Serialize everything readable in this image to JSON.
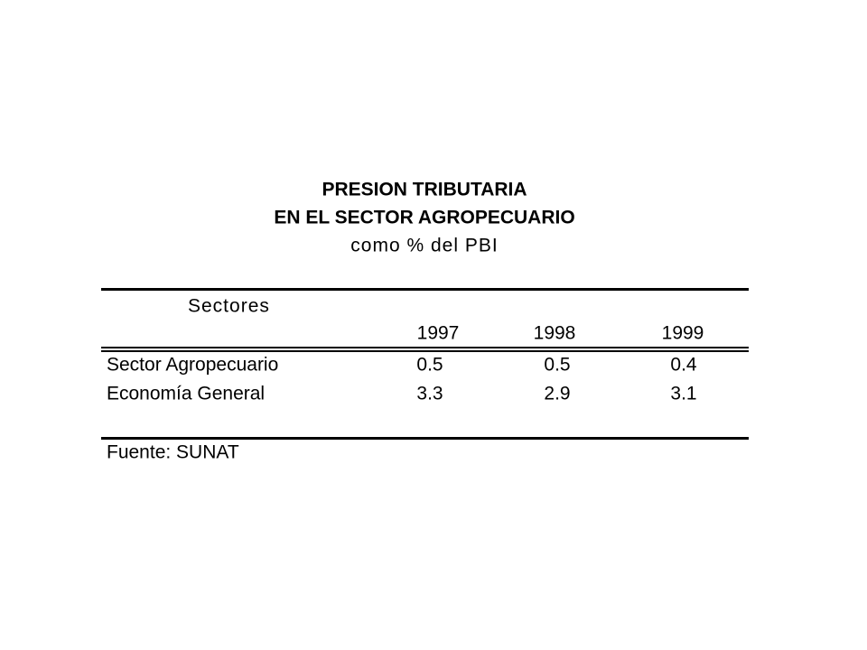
{
  "title": {
    "line1": "PRESION TRIBUTARIA",
    "line2": "EN EL SECTOR AGROPECUARIO",
    "line3": "como % del PBI"
  },
  "table": {
    "header": "Sectores",
    "columns": [
      "1997",
      "1998",
      "1999"
    ],
    "rows": [
      {
        "label": "Sector Agropecuario",
        "values": [
          0.5,
          0.5,
          0.4
        ]
      },
      {
        "label": "Economía General",
        "values": [
          3.3,
          2.9,
          3.1
        ]
      }
    ]
  },
  "source": "Fuente: SUNAT"
}
